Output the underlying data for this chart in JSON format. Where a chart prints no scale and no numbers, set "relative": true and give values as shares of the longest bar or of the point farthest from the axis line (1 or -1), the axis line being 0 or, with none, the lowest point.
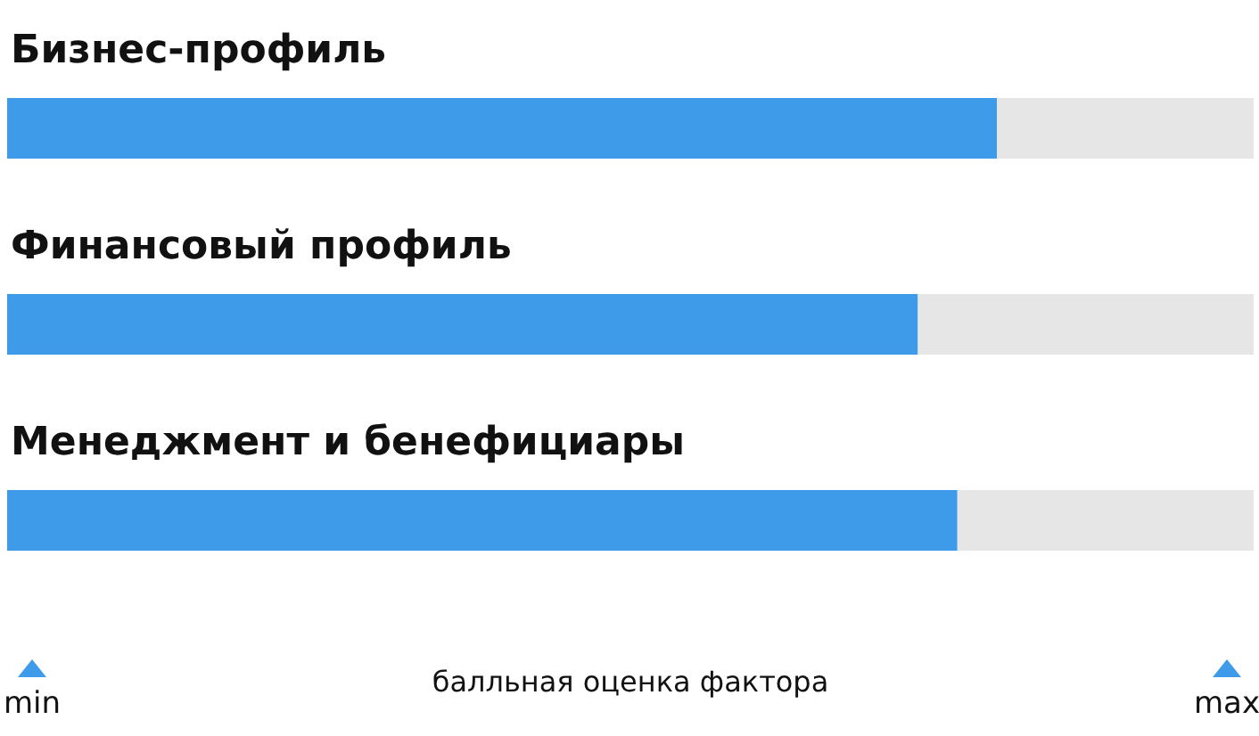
{
  "chart_data": {
    "type": "bar",
    "orientation": "horizontal",
    "relative": true,
    "categories": [
      "Бизнес-профиль",
      "Финансовый профиль",
      "Менеджмент и бенефициары"
    ],
    "values": [
      1,
      0.92,
      0.96
    ],
    "color": "#3d9be9",
    "xlabel": "балльная оценка фактора",
    "annotations": [
      "min",
      "max"
    ]
  }
}
